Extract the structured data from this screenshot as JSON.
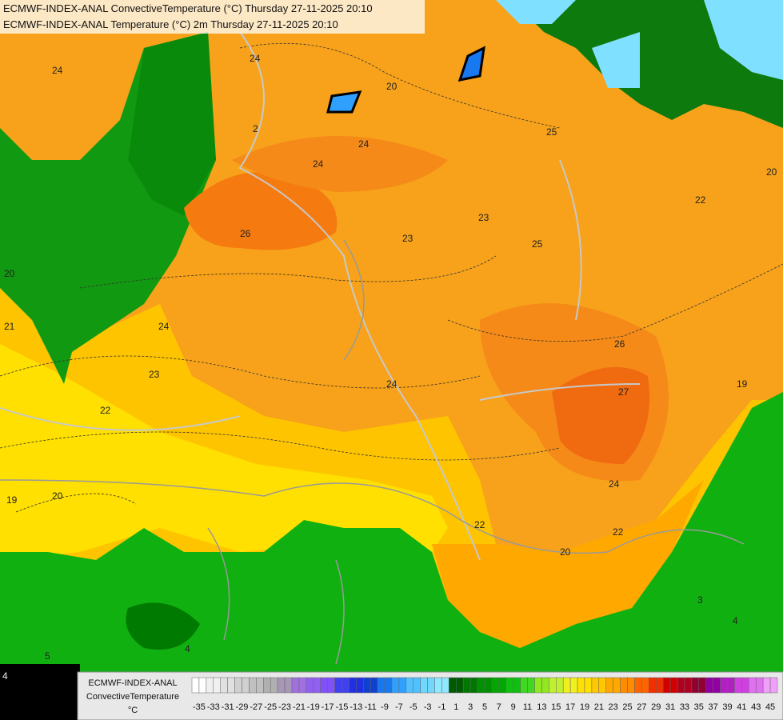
{
  "header": {
    "line1": "ECMWF-INDEX-ANAL ConvectiveTemperature (°C) Thursday 27-11-2025 20:10",
    "line2": "ECMWF-INDEX-ANAL Temperature (°C) 2m Thursday 27-11-2025 20:10"
  },
  "legend": {
    "title1": "ECMWF-INDEX-ANAL",
    "title2": "ConvectiveTemperature",
    "unit": "°C",
    "ticks": [
      -35,
      -33,
      -31,
      -29,
      -27,
      -25,
      -23,
      -21,
      -19,
      -17,
      -15,
      -13,
      -11,
      -9,
      -7,
      -5,
      -3,
      -1,
      1,
      3,
      5,
      7,
      9,
      11,
      13,
      15,
      17,
      19,
      21,
      23,
      25,
      27,
      29,
      31,
      33,
      35,
      37,
      39,
      41,
      43,
      45
    ],
    "colors": [
      "#ffffff",
      "#f0f0f0",
      "#e0e0e0",
      "#d0d0d0",
      "#c0c0c0",
      "#b0b0b0",
      "#a898b8",
      "#a070e0",
      "#9060f0",
      "#8050f8",
      "#4040f0",
      "#2030e0",
      "#1040d0",
      "#1878f0",
      "#30a0ff",
      "#50c0ff",
      "#70d8ff",
      "#90e8ff",
      "#005a00",
      "#007800",
      "#009000",
      "#00a800",
      "#10c010",
      "#40d820",
      "#90e820",
      "#c0f030",
      "#f0f020",
      "#ffe000",
      "#ffc800",
      "#ffa800",
      "#ff8c00",
      "#ff6400",
      "#f03000",
      "#d00000",
      "#b00020",
      "#900030",
      "#9000a0",
      "#b020c0",
      "#d040e0",
      "#e070f0",
      "#f0a0f8"
    ]
  },
  "contour_labels": [
    "24",
    "24",
    "20",
    "24",
    "24",
    "26",
    "23",
    "23",
    "25",
    "25",
    "20",
    "22",
    "26",
    "27",
    "24",
    "23",
    "22",
    "24",
    "20",
    "21",
    "19",
    "20",
    "22",
    "20",
    "22",
    "24",
    "19",
    "3",
    "4",
    "5",
    "4",
    "4",
    "2"
  ]
}
